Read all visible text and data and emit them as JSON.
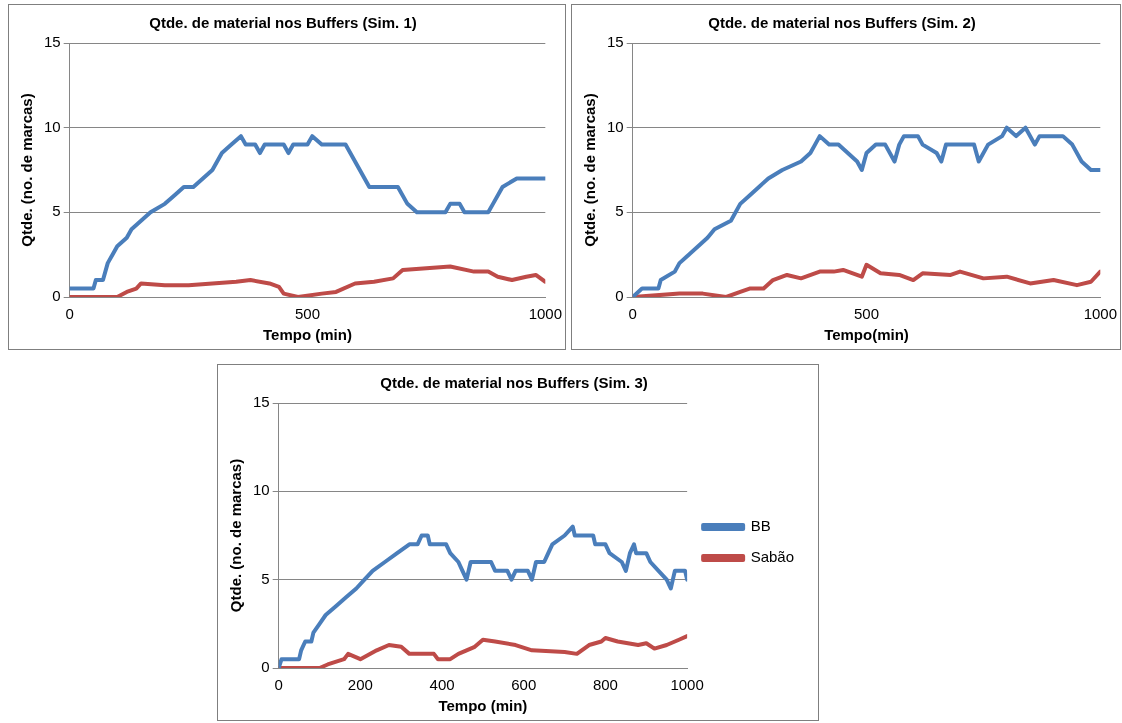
{
  "chart_data": [
    {
      "type": "line",
      "title": "Qtde. de material nos Buffers (Sim. 1)",
      "xlabel": "Tempo (min)",
      "ylabel": "Qtde. (no. de marcas)",
      "xlim": [
        0,
        1000
      ],
      "xticks": [
        0,
        500,
        1000
      ],
      "ylim": [
        0,
        15
      ],
      "yticks": [
        0,
        5,
        10,
        15
      ],
      "grid": "y",
      "legend": false,
      "line_style": "solid",
      "series": [
        {
          "color": "#4a7ebb",
          "x": [
            0,
            50,
            55,
            70,
            80,
            90,
            100,
            120,
            130,
            150,
            170,
            200,
            220,
            240,
            260,
            280,
            300,
            320,
            340,
            360,
            370,
            390,
            400,
            410,
            450,
            460,
            470,
            500,
            510,
            530,
            580,
            590,
            610,
            630,
            690,
            710,
            730,
            790,
            800,
            820,
            830,
            880,
            890,
            910,
            940,
            1000
          ],
          "values": [
            0.5,
            0.5,
            1,
            1,
            2,
            2.5,
            3,
            3.5,
            4,
            4.5,
            5,
            5.5,
            6,
            6.5,
            6.5,
            7,
            7.5,
            8.5,
            9,
            9.5,
            9,
            9,
            8.5,
            9,
            9,
            8.5,
            9,
            9,
            9.5,
            9,
            9,
            8.5,
            7.5,
            6.5,
            6.5,
            5.5,
            5,
            5,
            5.5,
            5.5,
            5,
            5,
            5.5,
            6.5,
            7,
            7
          ]
        },
        {
          "color": "#be4b48",
          "x": [
            0,
            100,
            120,
            140,
            150,
            200,
            250,
            300,
            350,
            380,
            420,
            440,
            450,
            480,
            530,
            560,
            600,
            640,
            680,
            700,
            750,
            800,
            850,
            880,
            900,
            930,
            960,
            980,
            1000
          ],
          "values": [
            0,
            0,
            0.3,
            0.5,
            0.8,
            0.7,
            0.7,
            0.8,
            0.9,
            1,
            0.8,
            0.6,
            0.2,
            0,
            0.2,
            0.3,
            0.8,
            0.9,
            1.1,
            1.6,
            1.7,
            1.8,
            1.5,
            1.5,
            1.2,
            1,
            1.2,
            1.3,
            0.9
          ]
        }
      ]
    },
    {
      "type": "line",
      "title": "Qtde. de material nos Buffers (Sim. 2)",
      "xlabel": "Tempo(min)",
      "ylabel": "Qtde. (no. de marcas)",
      "xlim": [
        0,
        1000
      ],
      "xticks": [
        0,
        500,
        1000
      ],
      "ylim": [
        0,
        15
      ],
      "yticks": [
        0,
        5,
        10,
        15
      ],
      "grid": "y",
      "legend": false,
      "line_style": "solid",
      "series": [
        {
          "color": "#4a7ebb",
          "x": [
            0,
            20,
            55,
            60,
            90,
            100,
            120,
            140,
            160,
            175,
            210,
            230,
            250,
            270,
            290,
            320,
            360,
            380,
            390,
            400,
            420,
            440,
            460,
            480,
            490,
            500,
            520,
            540,
            560,
            570,
            580,
            610,
            620,
            650,
            660,
            670,
            730,
            740,
            760,
            790,
            800,
            820,
            840,
            860,
            870,
            920,
            940,
            960,
            980,
            1000
          ],
          "values": [
            0,
            0.5,
            0.5,
            1,
            1.5,
            2,
            2.5,
            3,
            3.5,
            4,
            4.5,
            5.5,
            6,
            6.5,
            7,
            7.5,
            8,
            8.5,
            9,
            9.5,
            9,
            9,
            8.5,
            8,
            7.5,
            8.5,
            9,
            9,
            8,
            9,
            9.5,
            9.5,
            9,
            8.5,
            8,
            9,
            9,
            8,
            9,
            9.5,
            10,
            9.5,
            10,
            9,
            9.5,
            9.5,
            9,
            8,
            7.5,
            7.5
          ]
        },
        {
          "color": "#be4b48",
          "x": [
            0,
            100,
            150,
            200,
            230,
            250,
            280,
            300,
            330,
            360,
            400,
            430,
            450,
            490,
            500,
            530,
            570,
            600,
            620,
            680,
            700,
            750,
            800,
            850,
            900,
            950,
            980,
            1000
          ],
          "values": [
            0,
            0.2,
            0.2,
            0,
            0.3,
            0.5,
            0.5,
            1,
            1.3,
            1.1,
            1.5,
            1.5,
            1.6,
            1.2,
            1.9,
            1.4,
            1.3,
            1,
            1.4,
            1.3,
            1.5,
            1.1,
            1.2,
            0.8,
            1,
            0.7,
            0.9,
            1.5
          ]
        }
      ]
    },
    {
      "type": "line",
      "title": "Qtde. de material nos Buffers (Sim. 3)",
      "xlabel": "Tempo (min)",
      "ylabel": "Qtde. (no. de marcas)",
      "xlim": [
        0,
        1000
      ],
      "xticks": [
        0,
        200,
        400,
        600,
        800,
        1000
      ],
      "ylim": [
        0,
        15
      ],
      "yticks": [
        0,
        5,
        10,
        15
      ],
      "grid": "y",
      "legend": "right",
      "line_style": "solid",
      "series": [
        {
          "name": "BB",
          "color": "#4a7ebb",
          "x": [
            0,
            7,
            50,
            55,
            65,
            80,
            85,
            100,
            115,
            140,
            165,
            190,
            210,
            230,
            260,
            290,
            320,
            340,
            350,
            365,
            370,
            410,
            420,
            440,
            450,
            460,
            470,
            520,
            530,
            560,
            570,
            580,
            610,
            620,
            625,
            630,
            650,
            660,
            670,
            700,
            720,
            725,
            770,
            775,
            800,
            810,
            840,
            850,
            860,
            870,
            875,
            900,
            910,
            930,
            950,
            960,
            965,
            970,
            995,
            1000
          ],
          "values": [
            0,
            0.5,
            0.5,
            1,
            1.5,
            1.5,
            2,
            2.5,
            3,
            3.5,
            4,
            4.5,
            5,
            5.5,
            6,
            6.5,
            7,
            7,
            7.5,
            7.5,
            7,
            7,
            6.5,
            6,
            5.5,
            5,
            6,
            6,
            5.5,
            5.5,
            5,
            5.5,
            5.5,
            5,
            5.5,
            6,
            6,
            6.5,
            7,
            7.5,
            8,
            7.5,
            7.5,
            7,
            7,
            6.5,
            6,
            5.5,
            6.5,
            7,
            6.5,
            6.5,
            6,
            5.5,
            5,
            4.5,
            5,
            5.5,
            5.5,
            5
          ]
        },
        {
          "name": "Sabão",
          "color": "#be4b48",
          "x": [
            0,
            100,
            120,
            160,
            170,
            200,
            240,
            270,
            300,
            320,
            380,
            390,
            420,
            440,
            480,
            500,
            530,
            580,
            620,
            700,
            730,
            760,
            790,
            800,
            830,
            880,
            900,
            920,
            950,
            980,
            1000
          ],
          "values": [
            0,
            0,
            0.2,
            0.5,
            0.8,
            0.5,
            1,
            1.3,
            1.2,
            0.8,
            0.8,
            0.5,
            0.5,
            0.8,
            1.2,
            1.6,
            1.5,
            1.3,
            1,
            0.9,
            0.8,
            1.3,
            1.5,
            1.7,
            1.5,
            1.3,
            1.4,
            1.1,
            1.3,
            1.6,
            1.8
          ]
        }
      ]
    }
  ]
}
